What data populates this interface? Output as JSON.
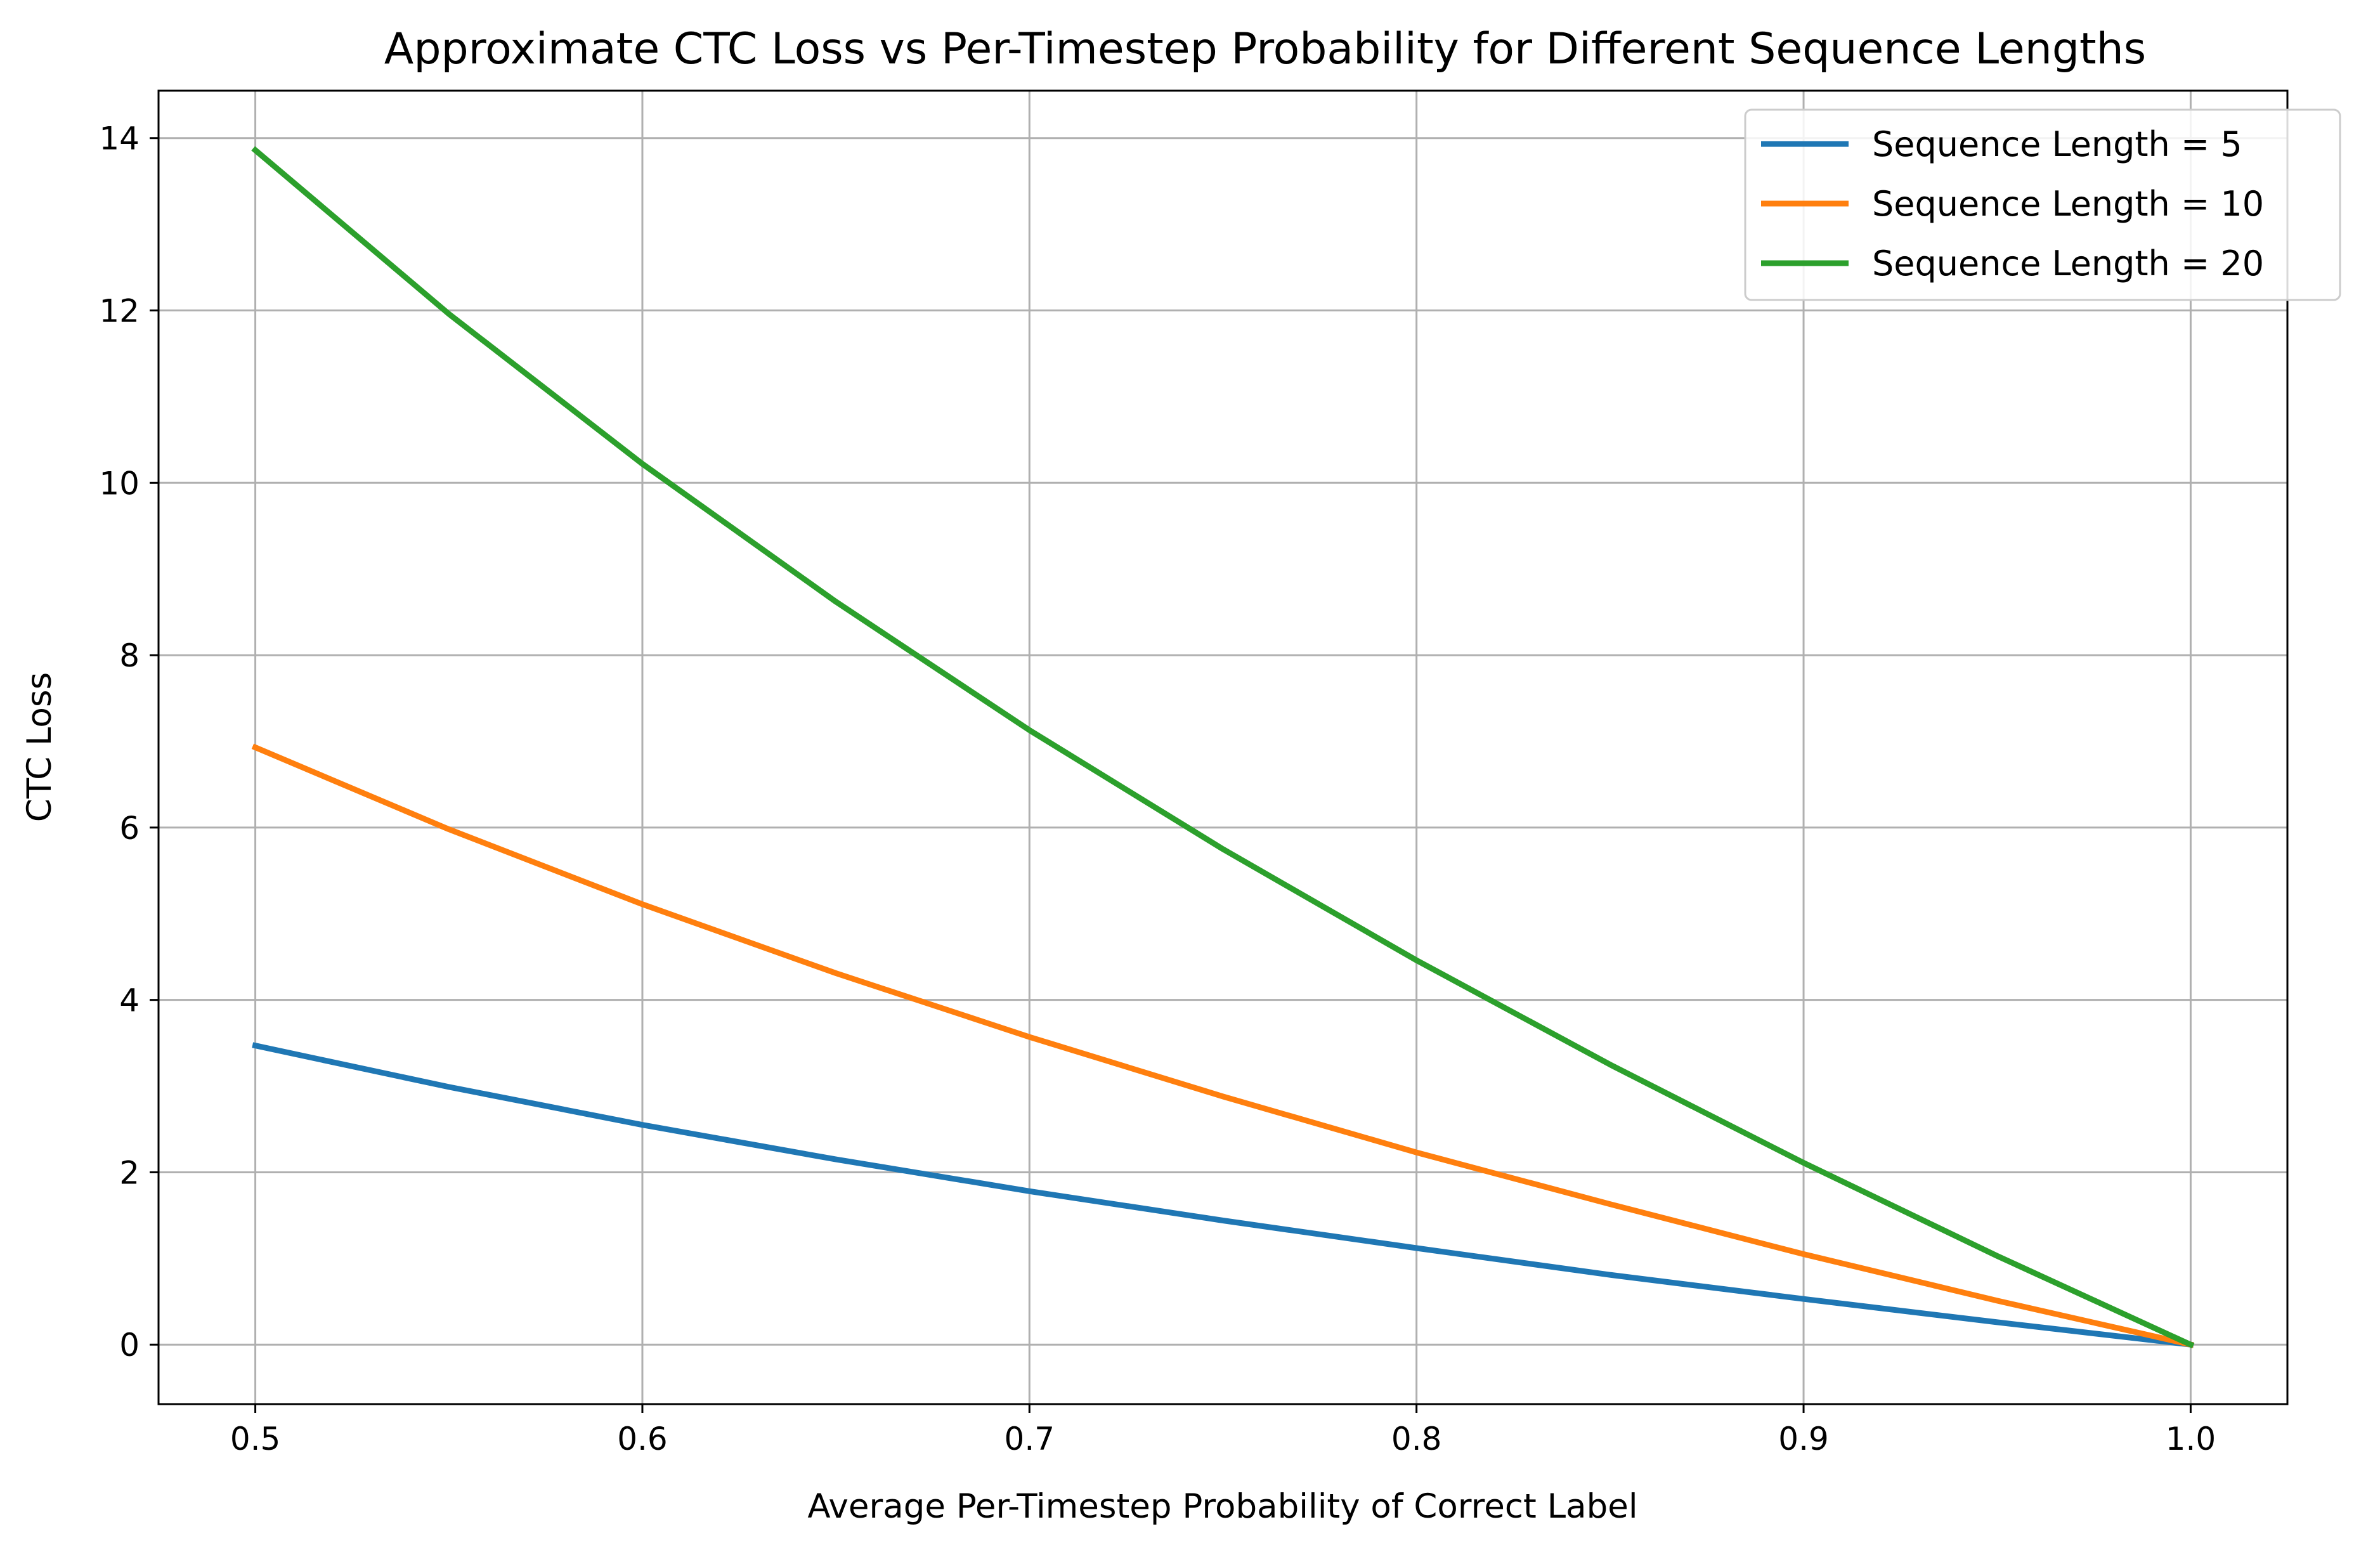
{
  "chart_data": {
    "type": "line",
    "title": "Approximate CTC Loss vs Per-Timestep Probability for Different Sequence Lengths",
    "xlabel": "Average Per-Timestep Probability of Correct Label",
    "ylabel": "CTC Loss",
    "xlim": [
      0.475,
      1.025
    ],
    "ylim": [
      -0.69,
      14.55
    ],
    "xticks": [
      0.5,
      0.6,
      0.7,
      0.8,
      0.9,
      1.0
    ],
    "xtick_labels": [
      "0.5",
      "0.6",
      "0.7",
      "0.8",
      "0.9",
      "1.0"
    ],
    "yticks": [
      0,
      2,
      4,
      6,
      8,
      10,
      12,
      14
    ],
    "ytick_labels": [
      "0",
      "2",
      "4",
      "6",
      "8",
      "10",
      "12",
      "14"
    ],
    "grid": true,
    "legend_position": "top-right",
    "x": [
      0.5,
      0.55,
      0.6,
      0.65,
      0.7,
      0.75,
      0.8,
      0.85,
      0.9,
      0.95,
      1.0
    ],
    "series": [
      {
        "name": "Sequence Length = 5",
        "color": "#1f77b4",
        "values": [
          3.47,
          2.99,
          2.55,
          2.15,
          1.78,
          1.44,
          1.12,
          0.81,
          0.53,
          0.26,
          0.0
        ]
      },
      {
        "name": "Sequence Length = 10",
        "color": "#ff7f0e",
        "values": [
          6.93,
          5.98,
          5.11,
          4.31,
          3.57,
          2.88,
          2.23,
          1.63,
          1.05,
          0.51,
          0.0
        ]
      },
      {
        "name": "Sequence Length = 20",
        "color": "#2ca02c",
        "values": [
          13.86,
          11.96,
          10.22,
          8.62,
          7.13,
          5.75,
          4.46,
          3.25,
          2.11,
          1.03,
          0.0
        ]
      }
    ]
  }
}
